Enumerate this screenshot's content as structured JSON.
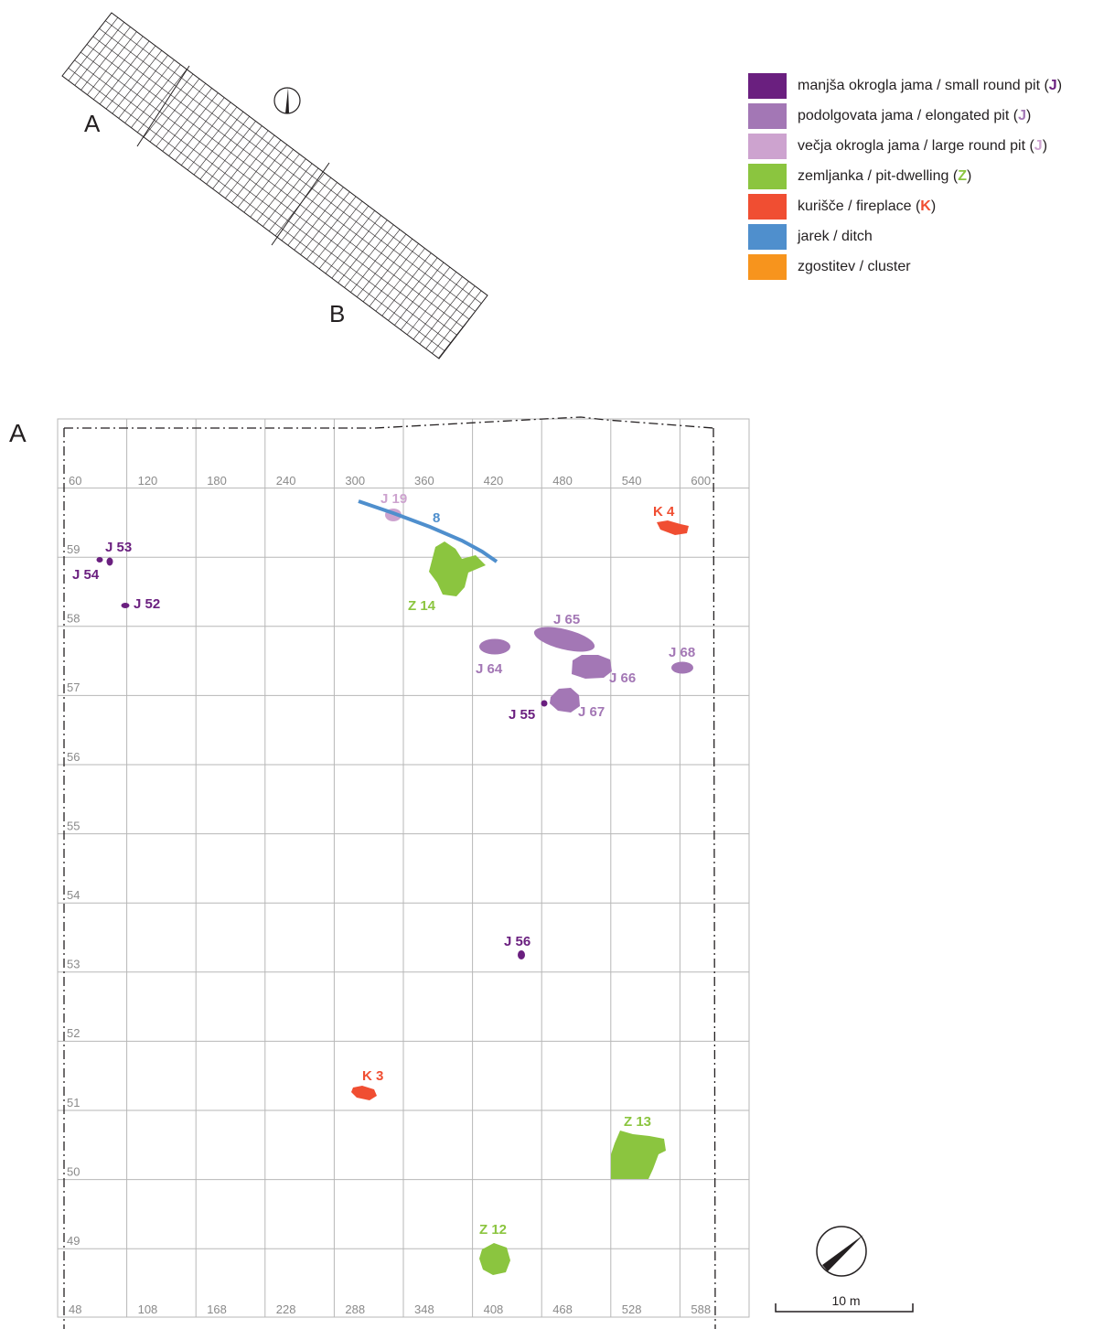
{
  "overview": {
    "label_a": "A",
    "label_b": "B"
  },
  "plan": {
    "section_label": "A",
    "x_ticks_top": [
      "60",
      "120",
      "180",
      "240",
      "300",
      "360",
      "420",
      "480",
      "540",
      "600"
    ],
    "x_ticks_bottom": [
      "48",
      "108",
      "168",
      "228",
      "288",
      "348",
      "408",
      "468",
      "528",
      "588"
    ],
    "y_ticks": [
      "59",
      "58",
      "57",
      "56",
      "55",
      "54",
      "53",
      "52",
      "51",
      "50",
      "49"
    ]
  },
  "legend": {
    "items": [
      {
        "text": "manjša okrogla jama / small round pit (",
        "code": "J",
        "tail": ")",
        "color": "#6a1f7f"
      },
      {
        "text": "podolgovata jama / elongated pit (",
        "code": "J",
        "tail": ")",
        "color": "#a377b5"
      },
      {
        "text": "večja okrogla jama / large round pit (",
        "code": "J",
        "tail": ")",
        "color": "#cda3cf"
      },
      {
        "text": "zemljanka / pit-dwelling (",
        "code": "Z",
        "tail": ")",
        "color": "#8bc53f"
      },
      {
        "text": "kurišče / fireplace (",
        "code": "K",
        "tail": ")",
        "color": "#f04e32"
      },
      {
        "text": "jarek / ditch",
        "code": "",
        "tail": "",
        "color": "#4f8fcd"
      },
      {
        "text": "zgostitev / cluster",
        "code": "",
        "tail": "",
        "color": "#f7941d"
      }
    ]
  },
  "features": [
    {
      "id": "J 53",
      "color": "#6a1f7f"
    },
    {
      "id": "J 54",
      "color": "#6a1f7f"
    },
    {
      "id": "J 52",
      "color": "#6a1f7f"
    },
    {
      "id": "J 19",
      "color": "#cda3cf"
    },
    {
      "id": "8",
      "color": "#4f8fcd"
    },
    {
      "id": "Z 14",
      "color": "#8bc53f"
    },
    {
      "id": "K 4",
      "color": "#f04e32"
    },
    {
      "id": "J 65",
      "color": "#a377b5"
    },
    {
      "id": "J 64",
      "color": "#a377b5"
    },
    {
      "id": "J 66",
      "color": "#a377b5"
    },
    {
      "id": "J 68",
      "color": "#a377b5"
    },
    {
      "id": "J 67",
      "color": "#a377b5"
    },
    {
      "id": "J 55",
      "color": "#6a1f7f"
    },
    {
      "id": "J 56",
      "color": "#6a1f7f"
    },
    {
      "id": "K 3",
      "color": "#f04e32"
    },
    {
      "id": "Z 13",
      "color": "#8bc53f"
    },
    {
      "id": "Z 12",
      "color": "#8bc53f"
    }
  ],
  "scale_bar": {
    "label": "10 m"
  }
}
